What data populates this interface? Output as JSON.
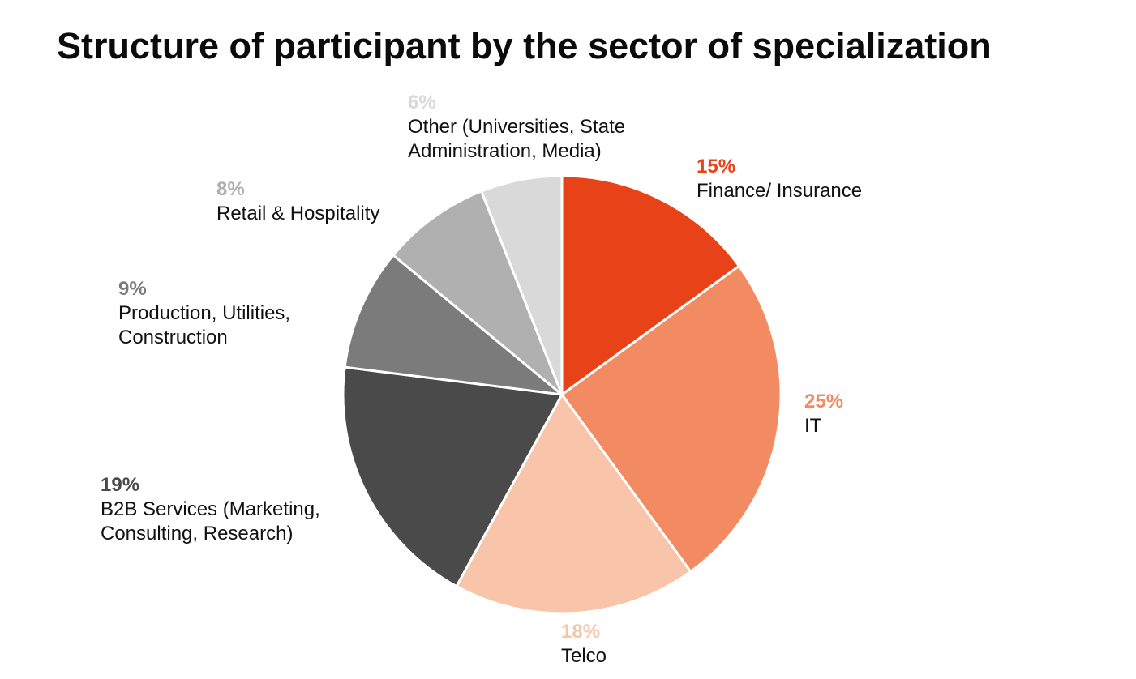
{
  "title": "Structure of participant by the sector of specialization",
  "chart_data": {
    "type": "pie",
    "title": "Structure of participant by the sector of specialization",
    "start_angle_deg": 0,
    "direction": "clockwise",
    "slices": [
      {
        "key": "finance",
        "percent_label": "15%",
        "value": 15,
        "label": "Finance/ Insurance",
        "color": "#E74218"
      },
      {
        "key": "it",
        "percent_label": "25%",
        "value": 25,
        "label": "IT",
        "color": "#F28B61"
      },
      {
        "key": "telco",
        "percent_label": "18%",
        "value": 18,
        "label": "Telco",
        "color": "#F9C5AA"
      },
      {
        "key": "b2b",
        "percent_label": "19%",
        "value": 19,
        "label": "B2B Services (Marketing,\nConsulting, Research)",
        "color": "#4A4A4A"
      },
      {
        "key": "production",
        "percent_label": "9%",
        "value": 9,
        "label": "Production, Utilities,\nConstruction",
        "color": "#7C7B7B"
      },
      {
        "key": "retail",
        "percent_label": "8%",
        "value": 8,
        "label": "Retail & Hospitality",
        "color": "#B1B0B0"
      },
      {
        "key": "other",
        "percent_label": "6%",
        "value": 6,
        "label": "Other (Universities, State\nAdministration, Media)",
        "color": "#D9D9D9"
      }
    ]
  }
}
